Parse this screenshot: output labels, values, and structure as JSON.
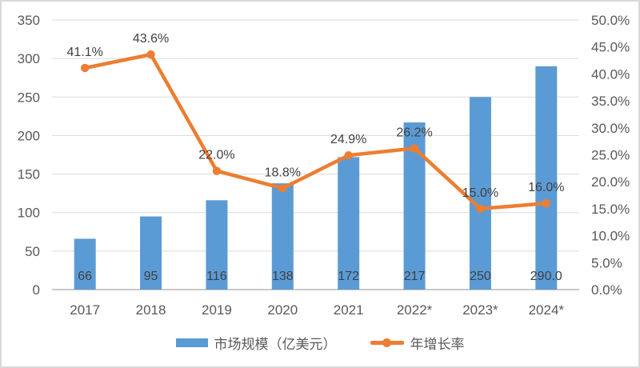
{
  "chart_data": {
    "type": "bar",
    "subtype": "combo-bar-line",
    "title": "",
    "categories": [
      "2017",
      "2018",
      "2019",
      "2020",
      "2021",
      "2022*",
      "2023*",
      "2024*"
    ],
    "series": [
      {
        "name": "市场规模（亿美元）",
        "type": "bar",
        "axis": "left",
        "values": [
          66,
          95,
          116,
          138,
          172,
          217,
          250,
          290.0
        ],
        "labels": [
          "66",
          "95",
          "116",
          "138",
          "172",
          "217",
          "250",
          "290.0"
        ],
        "color": "#5b9bd5"
      },
      {
        "name": "年增长率",
        "type": "line",
        "axis": "right",
        "values": [
          41.1,
          43.6,
          22.0,
          18.8,
          24.9,
          26.2,
          15.0,
          16.0
        ],
        "labels": [
          "41.1%",
          "43.6%",
          "22.0%",
          "18.8%",
          "24.9%",
          "26.2%",
          "15.0%",
          "16.0%"
        ],
        "color": "#ed7d31"
      }
    ],
    "left_axis": {
      "min": 0,
      "max": 350,
      "step": 50,
      "ticks": [
        "350",
        "300",
        "250",
        "200",
        "150",
        "100",
        "50",
        "0"
      ]
    },
    "right_axis": {
      "min": 0,
      "max": 50,
      "step": 5,
      "ticks": [
        "50.0%",
        "45.0%",
        "40.0%",
        "35.0%",
        "30.0%",
        "25.0%",
        "20.0%",
        "15.0%",
        "10.0%",
        "5.0%",
        "0.0%"
      ]
    },
    "grid": true,
    "legend_position": "bottom"
  },
  "colors": {
    "bar": "#5b9bd5",
    "line": "#ed7d31",
    "gridline": "#d9d9d9",
    "axis_line": "#c9c9c9",
    "axis_text": "#595959",
    "data_label_text": "#404040",
    "frame_border": "#d8d8d8",
    "background": "#ffffff"
  }
}
